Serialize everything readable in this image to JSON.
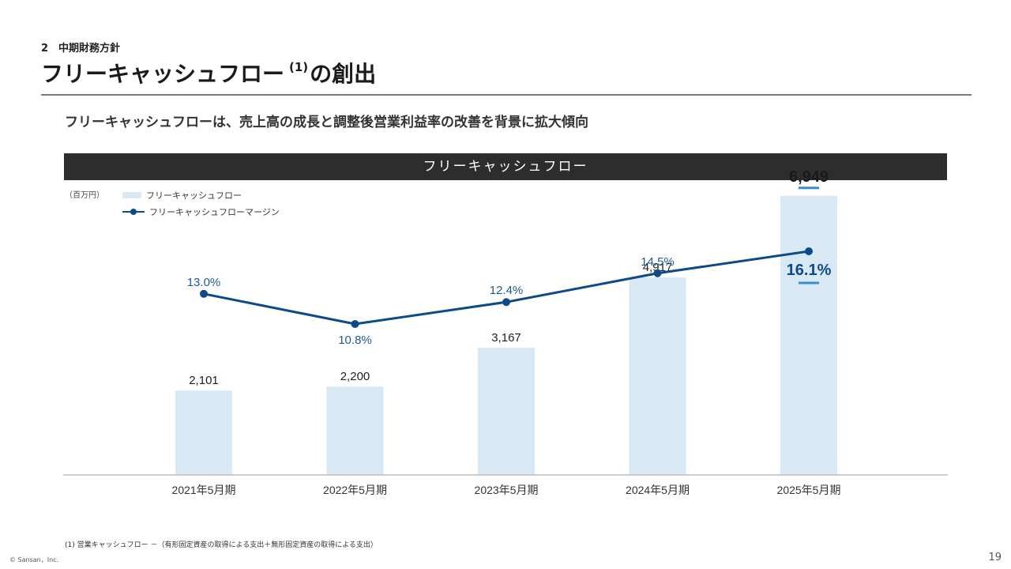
{
  "header": {
    "section": "2　中期財務方針",
    "title_main": "フリーキャッシュフロー",
    "title_note": "(1)",
    "title_suffix": "の創出",
    "subtitle": "フリーキャッシュフローは、売上高の成長と調整後営業利益率の改善を背景に拡大傾向"
  },
  "chart_header": "フリーキャッシュフロー",
  "unit_label": "（百万円）",
  "legend": {
    "bar_label": "フリーキャッシュフロー",
    "line_label": "フリーキャッシュフローマージン"
  },
  "chart_data": {
    "type": "bar",
    "categories": [
      "2021年5月期",
      "2022年5月期",
      "2023年5月期",
      "2024年5月期",
      "2025年5月期"
    ],
    "series": [
      {
        "name": "フリーキャッシュフロー",
        "type": "bar",
        "values": [
          2101,
          2200,
          3167,
          4917,
          6949
        ],
        "labels": [
          "2,101",
          "2,200",
          "3,167",
          "4,917",
          "6,949"
        ]
      },
      {
        "name": "フリーキャッシュフローマージン",
        "type": "line",
        "values": [
          13.0,
          10.8,
          12.4,
          14.5,
          16.1
        ],
        "labels": [
          "13.0%",
          "10.8%",
          "12.4%",
          "14.5%",
          "16.1%"
        ]
      }
    ],
    "ylim": [
      0,
      7200
    ],
    "line_ylim": [
      0,
      20
    ],
    "highlight_last": true,
    "colors": {
      "bar": "#d8e9f5",
      "line": "#0c4a8a",
      "label": "#1f5b8f",
      "accent": "#2f8fdc",
      "axis": "#bdbdbd"
    }
  },
  "footnote": "(1) 営業キャッシュフロー －（有形固定資産の取得による支出＋無形固定資産の取得による支出）",
  "copyright": "© Sansan，Inc.",
  "page_number": "19"
}
